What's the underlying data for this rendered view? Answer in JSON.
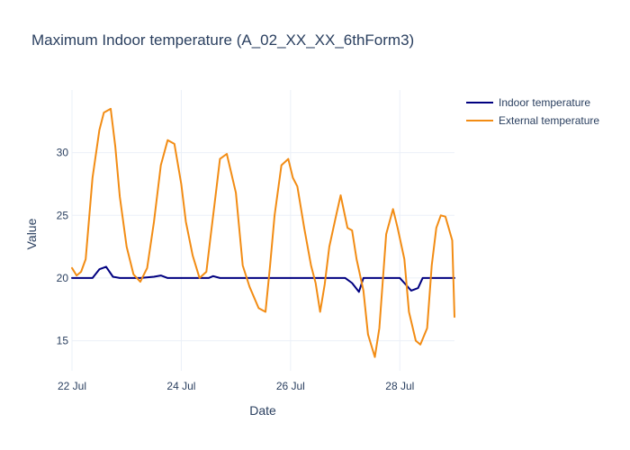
{
  "chart_data": {
    "type": "line",
    "title": "Maximum Indoor temperature (A_02_XX_XX_6thForm3)",
    "xlabel": "Date",
    "ylabel": "Value",
    "x_tick_labels": [
      "22 Jul",
      "24 Jul",
      "26 Jul",
      "28 Jul"
    ],
    "x_ticks": [
      "2023-07-22",
      "2023-07-24",
      "2023-07-26",
      "2023-07-28"
    ],
    "xlim": [
      "2023-07-22",
      "2023-07-29"
    ],
    "ylim": [
      12.6,
      35
    ],
    "y_ticks": [
      15,
      20,
      25,
      30
    ],
    "grid": true,
    "legend_position": "top-right",
    "series": [
      {
        "name": "Indoor temperature",
        "color": "#000080",
        "x": [
          "2023-07-22 00:00",
          "2023-07-22 06:00",
          "2023-07-22 09:00",
          "2023-07-22 12:00",
          "2023-07-22 15:00",
          "2023-07-22 18:00",
          "2023-07-22 21:00",
          "2023-07-23 00:00",
          "2023-07-23 06:00",
          "2023-07-23 12:00",
          "2023-07-23 15:00",
          "2023-07-23 18:00",
          "2023-07-23 21:00",
          "2023-07-24 00:00",
          "2023-07-24 12:00",
          "2023-07-24 14:00",
          "2023-07-24 17:00",
          "2023-07-25 00:00",
          "2023-07-25 12:00",
          "2023-07-26 00:00",
          "2023-07-26 12:00",
          "2023-07-27 00:00",
          "2023-07-27 03:00",
          "2023-07-27 06:00",
          "2023-07-27 08:00",
          "2023-07-27 10:00",
          "2023-07-27 12:00",
          "2023-07-28 00:00",
          "2023-07-28 02:00",
          "2023-07-28 05:00",
          "2023-07-28 08:00",
          "2023-07-28 10:00",
          "2023-07-28 12:00",
          "2023-07-29 00:00"
        ],
        "y": [
          20.0,
          20.0,
          20.0,
          20.7,
          20.9,
          20.1,
          20.0,
          20.0,
          20.0,
          20.1,
          20.2,
          20.0,
          20.0,
          20.0,
          20.0,
          20.15,
          20.0,
          20.0,
          20.0,
          20.0,
          20.0,
          20.0,
          19.6,
          18.9,
          20.0,
          20.0,
          20.0,
          20.0,
          19.6,
          19.0,
          19.2,
          20.0,
          20.0,
          20.0
        ]
      },
      {
        "name": "External temperature",
        "color": "#f28c14",
        "x": [
          "2023-07-22 00:00",
          "2023-07-22 02:00",
          "2023-07-22 04:00",
          "2023-07-22 06:00",
          "2023-07-22 09:00",
          "2023-07-22 12:00",
          "2023-07-22 14:00",
          "2023-07-22 17:00",
          "2023-07-22 19:00",
          "2023-07-22 21:00",
          "2023-07-23 00:00",
          "2023-07-23 03:00",
          "2023-07-23 06:00",
          "2023-07-23 09:00",
          "2023-07-23 12:00",
          "2023-07-23 15:00",
          "2023-07-23 18:00",
          "2023-07-23 21:00",
          "2023-07-24 00:00",
          "2023-07-24 02:00",
          "2023-07-24 05:00",
          "2023-07-24 08:00",
          "2023-07-24 11:00",
          "2023-07-24 13:00",
          "2023-07-24 15:00",
          "2023-07-24 17:00",
          "2023-07-24 20:00",
          "2023-07-25 00:00",
          "2023-07-25 03:00",
          "2023-07-25 06:00",
          "2023-07-25 10:00",
          "2023-07-25 13:00",
          "2023-07-25 15:00",
          "2023-07-25 17:00",
          "2023-07-25 20:00",
          "2023-07-25 23:00",
          "2023-07-26 01:00",
          "2023-07-26 03:00",
          "2023-07-26 06:00",
          "2023-07-26 09:00",
          "2023-07-26 11:00",
          "2023-07-26 13:00",
          "2023-07-26 15:00",
          "2023-07-26 17:00",
          "2023-07-26 20:00",
          "2023-07-26 22:00",
          "2023-07-27 01:00",
          "2023-07-27 03:00",
          "2023-07-27 05:00",
          "2023-07-27 08:00",
          "2023-07-27 10:00",
          "2023-07-27 13:00",
          "2023-07-27 15:00",
          "2023-07-27 18:00",
          "2023-07-27 21:00",
          "2023-07-27 23:00",
          "2023-07-28 02:00",
          "2023-07-28 04:00",
          "2023-07-28 07:00",
          "2023-07-28 09:00",
          "2023-07-28 12:00",
          "2023-07-28 14:00",
          "2023-07-28 16:00",
          "2023-07-28 18:00",
          "2023-07-28 20:00",
          "2023-07-28 23:00",
          "2023-07-29 00:00"
        ],
        "y": [
          20.8,
          20.2,
          20.5,
          21.5,
          28.0,
          31.8,
          33.2,
          33.5,
          30.5,
          26.5,
          22.5,
          20.3,
          19.7,
          20.8,
          24.5,
          29.0,
          31.0,
          30.7,
          27.5,
          24.5,
          21.8,
          20.0,
          20.5,
          23.5,
          26.5,
          29.5,
          29.9,
          26.8,
          21.0,
          19.3,
          17.6,
          17.3,
          21.0,
          25.0,
          29.0,
          29.5,
          28.0,
          27.3,
          24.0,
          21.0,
          19.6,
          17.3,
          19.5,
          22.5,
          25.0,
          26.6,
          24.0,
          23.8,
          21.5,
          19.0,
          15.5,
          13.7,
          16.0,
          23.5,
          25.5,
          24.0,
          21.5,
          17.3,
          15.0,
          14.7,
          16.0,
          21.0,
          24.0,
          25.0,
          24.9,
          23.0,
          16.9
        ]
      }
    ]
  }
}
